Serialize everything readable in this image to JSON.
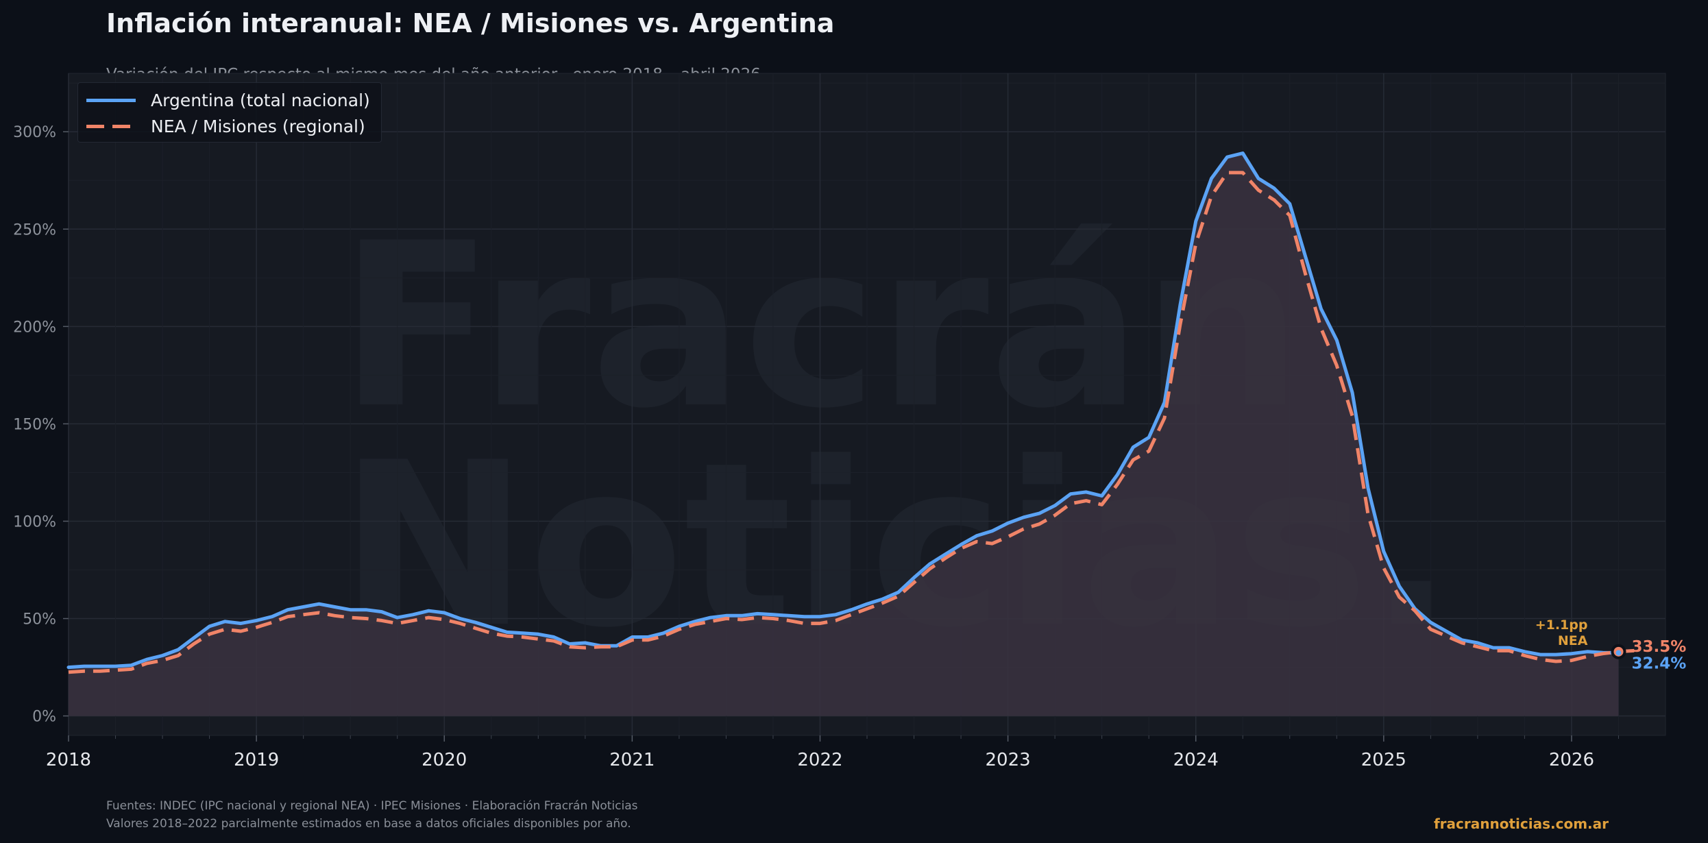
{
  "title": "Inflación interanual: NEA / Misiones vs. Argentina",
  "subtitle": "Variación del IPC respecto al mismo mes del año anterior · enero 2018 – abril 2026",
  "watermark": [
    "Fracrán",
    "Noticias."
  ],
  "footer": {
    "line1": "Fuentes: INDEC (IPC nacional y regional NEA) · IPEC Misiones · Elaboración Fracrán Noticias",
    "line2": "Valores 2018–2022 parcialmente estimados en base a datos oficiales disponibles por año.",
    "brand": "fracrannoticias.com.ar"
  },
  "colors": {
    "background": "#0c1018",
    "plot_background": "#161a22",
    "argentina": "#5ba3f5",
    "nea": "#f08468",
    "diff_annotation": "#e0a03c",
    "area_fill": "#3a333f"
  },
  "chart_data": {
    "type": "line",
    "xlabel": "",
    "ylabel": "",
    "xlim": [
      2018,
      2026.5
    ],
    "ylim": [
      -10,
      330
    ],
    "x_start": "2018-01",
    "x_ticks": [
      "2018",
      "2019",
      "2020",
      "2021",
      "2022",
      "2023",
      "2024",
      "2025",
      "2026"
    ],
    "y_ticks": [
      "0%",
      "50%",
      "100%",
      "150%",
      "200%",
      "250%",
      "300%"
    ],
    "y_tick_values": [
      0,
      50,
      100,
      150,
      200,
      250,
      300
    ],
    "grid": true,
    "legend_position": "top-left",
    "series": [
      {
        "name": "Argentina (total nacional)",
        "style": "solid",
        "values": [
          25,
          25.5,
          25.5,
          25.5,
          26,
          29,
          31,
          34,
          40,
          46,
          48.5,
          47.5,
          49,
          51,
          54.5,
          56,
          57.5,
          56,
          54.5,
          54.5,
          53.5,
          50.5,
          52,
          54,
          53,
          50,
          48,
          45.5,
          43,
          42.5,
          42,
          40.5,
          37,
          37.5,
          36,
          36,
          40.5,
          40.5,
          42.5,
          46,
          48.5,
          50.5,
          51.5,
          51.5,
          52.5,
          52,
          51.5,
          51,
          51,
          52,
          54.5,
          57.5,
          60,
          63.5,
          71,
          78,
          83,
          88,
          92.5,
          95,
          99,
          102,
          104,
          108,
          114,
          115,
          113,
          124,
          138,
          143,
          161,
          211,
          254,
          276,
          287,
          289,
          276,
          271,
          263,
          236,
          209,
          193,
          166,
          117,
          84.5,
          66.5,
          55,
          48,
          43.5,
          39,
          37.5,
          35,
          35,
          33,
          31.5,
          31.5,
          32,
          33,
          32.5,
          32.4
        ],
        "last_label": "32.4%"
      },
      {
        "name": "NEA / Misiones (regional)",
        "style": "dashed",
        "values": [
          22.5,
          23,
          23,
          23.5,
          24,
          27,
          28.5,
          31,
          37,
          42,
          44.5,
          43.5,
          45.5,
          48,
          51,
          52,
          53,
          51.5,
          50.5,
          50,
          49,
          47.5,
          49,
          50.5,
          49.5,
          47.5,
          45,
          42.5,
          41,
          40.5,
          39.5,
          38.5,
          35.5,
          35,
          35.5,
          35.5,
          39,
          39,
          41,
          44.5,
          47,
          48.5,
          50,
          49.5,
          50.5,
          50,
          49,
          47.5,
          47.5,
          49,
          52,
          55,
          58,
          61.5,
          68.5,
          75.5,
          81,
          86,
          89.5,
          88.5,
          92,
          96,
          98.5,
          103,
          109,
          110.5,
          108.5,
          119,
          131.5,
          136,
          153,
          201,
          242.5,
          267,
          279,
          279,
          270,
          265,
          257,
          227,
          199,
          180,
          154,
          103.5,
          76,
          61,
          54,
          44.5,
          41,
          37.5,
          35.5,
          33.5,
          33.5,
          31,
          29,
          28,
          28.5,
          30.5,
          32,
          33,
          33.5
        ],
        "last_label": "33.5%"
      }
    ],
    "annotations": {
      "difference": "+1.1pp",
      "difference_sub": "NEA",
      "last_point": "2026-04"
    }
  }
}
